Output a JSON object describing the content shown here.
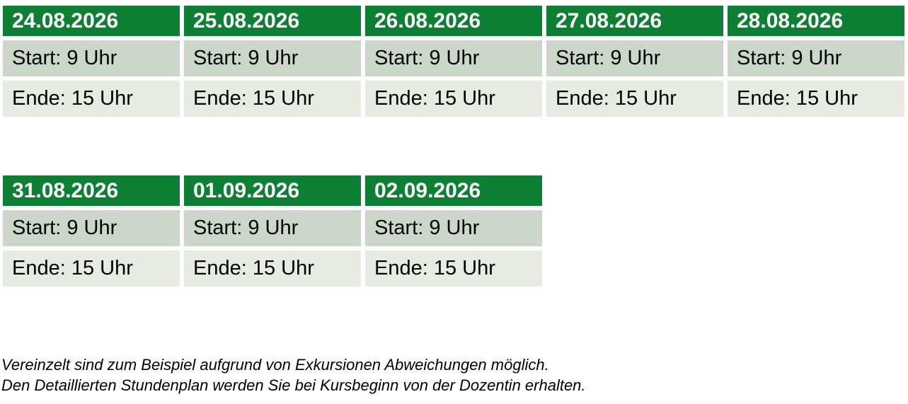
{
  "colors": {
    "header_bg": "#0E8033",
    "header_text": "#FFFFFF",
    "start_bg": "#CCD6CA",
    "end_bg": "#E6ECE4",
    "text": "#000000"
  },
  "week1": {
    "days": [
      {
        "date": "24.08.2026",
        "start": "Start: 9 Uhr",
        "end": "Ende: 15 Uhr"
      },
      {
        "date": "25.08.2026",
        "start": "Start: 9 Uhr",
        "end": "Ende: 15 Uhr"
      },
      {
        "date": "26.08.2026",
        "start": "Start: 9 Uhr",
        "end": "Ende: 15 Uhr"
      },
      {
        "date": "27.08.2026",
        "start": "Start: 9 Uhr",
        "end": "Ende: 15 Uhr"
      },
      {
        "date": "28.08.2026",
        "start": "Start: 9 Uhr",
        "end": "Ende: 15 Uhr"
      }
    ]
  },
  "week2": {
    "days": [
      {
        "date": "31.08.2026",
        "start": "Start: 9 Uhr",
        "end": "Ende: 15 Uhr"
      },
      {
        "date": "01.09.2026",
        "start": "Start: 9 Uhr",
        "end": "Ende: 15 Uhr"
      },
      {
        "date": "02.09.2026",
        "start": "Start: 9 Uhr",
        "end": "Ende: 15 Uhr"
      }
    ]
  },
  "notes": {
    "line1": "Vereinzelt sind zum Beispiel aufgrund von Exkursionen Abweichungen möglich.",
    "line2": "Den Detaillierten Stundenplan werden Sie bei Kursbeginn von der Dozentin erhalten."
  }
}
